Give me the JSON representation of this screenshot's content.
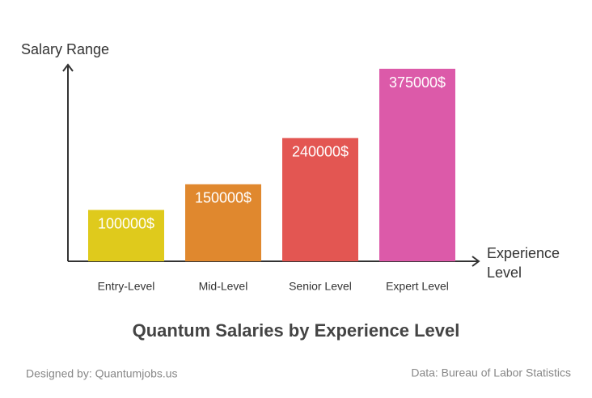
{
  "chart_data": {
    "type": "bar",
    "title": "Quantum Salaries by Experience Level",
    "y_label": "Salary Range",
    "x_label": "Experience Level",
    "categories": [
      "Entry-Level",
      "Mid-Level",
      "Senior Level",
      "Expert Level"
    ],
    "values": [
      100000,
      150000,
      240000,
      375000
    ],
    "value_labels": [
      "100000$",
      "150000$",
      "240000$",
      "375000$"
    ],
    "colors": [
      "#dfca1c",
      "#e0882e",
      "#e35652",
      "#dc5aa9"
    ],
    "credit": "Designed by: Quantumjobs.us",
    "source": "Data: Bureau of Labor Statistics"
  }
}
